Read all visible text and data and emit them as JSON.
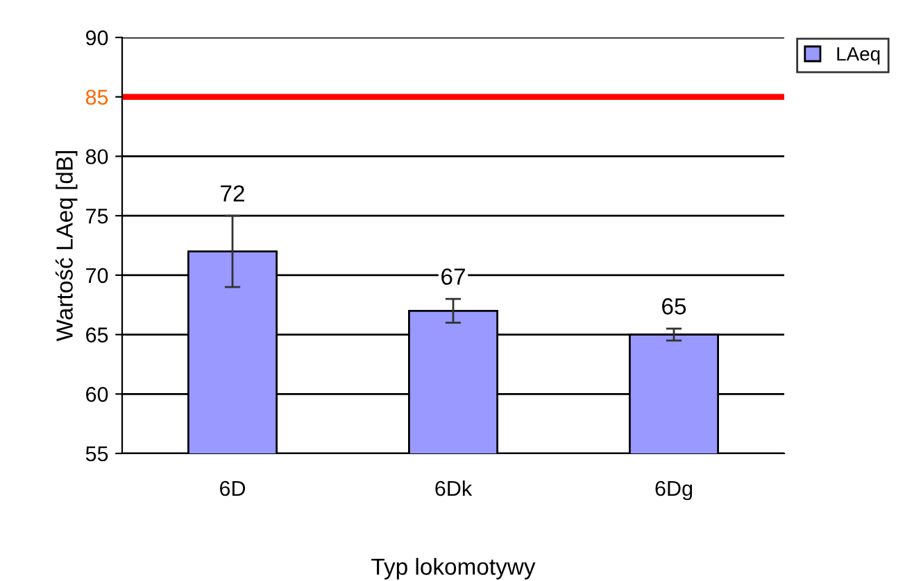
{
  "chart_data": {
    "type": "bar",
    "xlabel": "Typ lokomotywy",
    "ylabel": "Wartość LAeq [dB]",
    "categories": [
      "6D",
      "6Dk",
      "6Dg"
    ],
    "series": [
      {
        "name": "LAeq",
        "color": "#9999ff",
        "values": [
          72,
          67,
          65
        ],
        "errors": [
          3,
          1,
          0.5
        ]
      }
    ],
    "data_labels": true,
    "ylim": [
      55,
      90
    ],
    "yticks": [
      55,
      60,
      65,
      70,
      75,
      80,
      85,
      90
    ],
    "grid": "y",
    "legend": "top right",
    "ref_lines": [
      {
        "axis": "y",
        "value": 85,
        "color": "#ff0000"
      }
    ]
  }
}
